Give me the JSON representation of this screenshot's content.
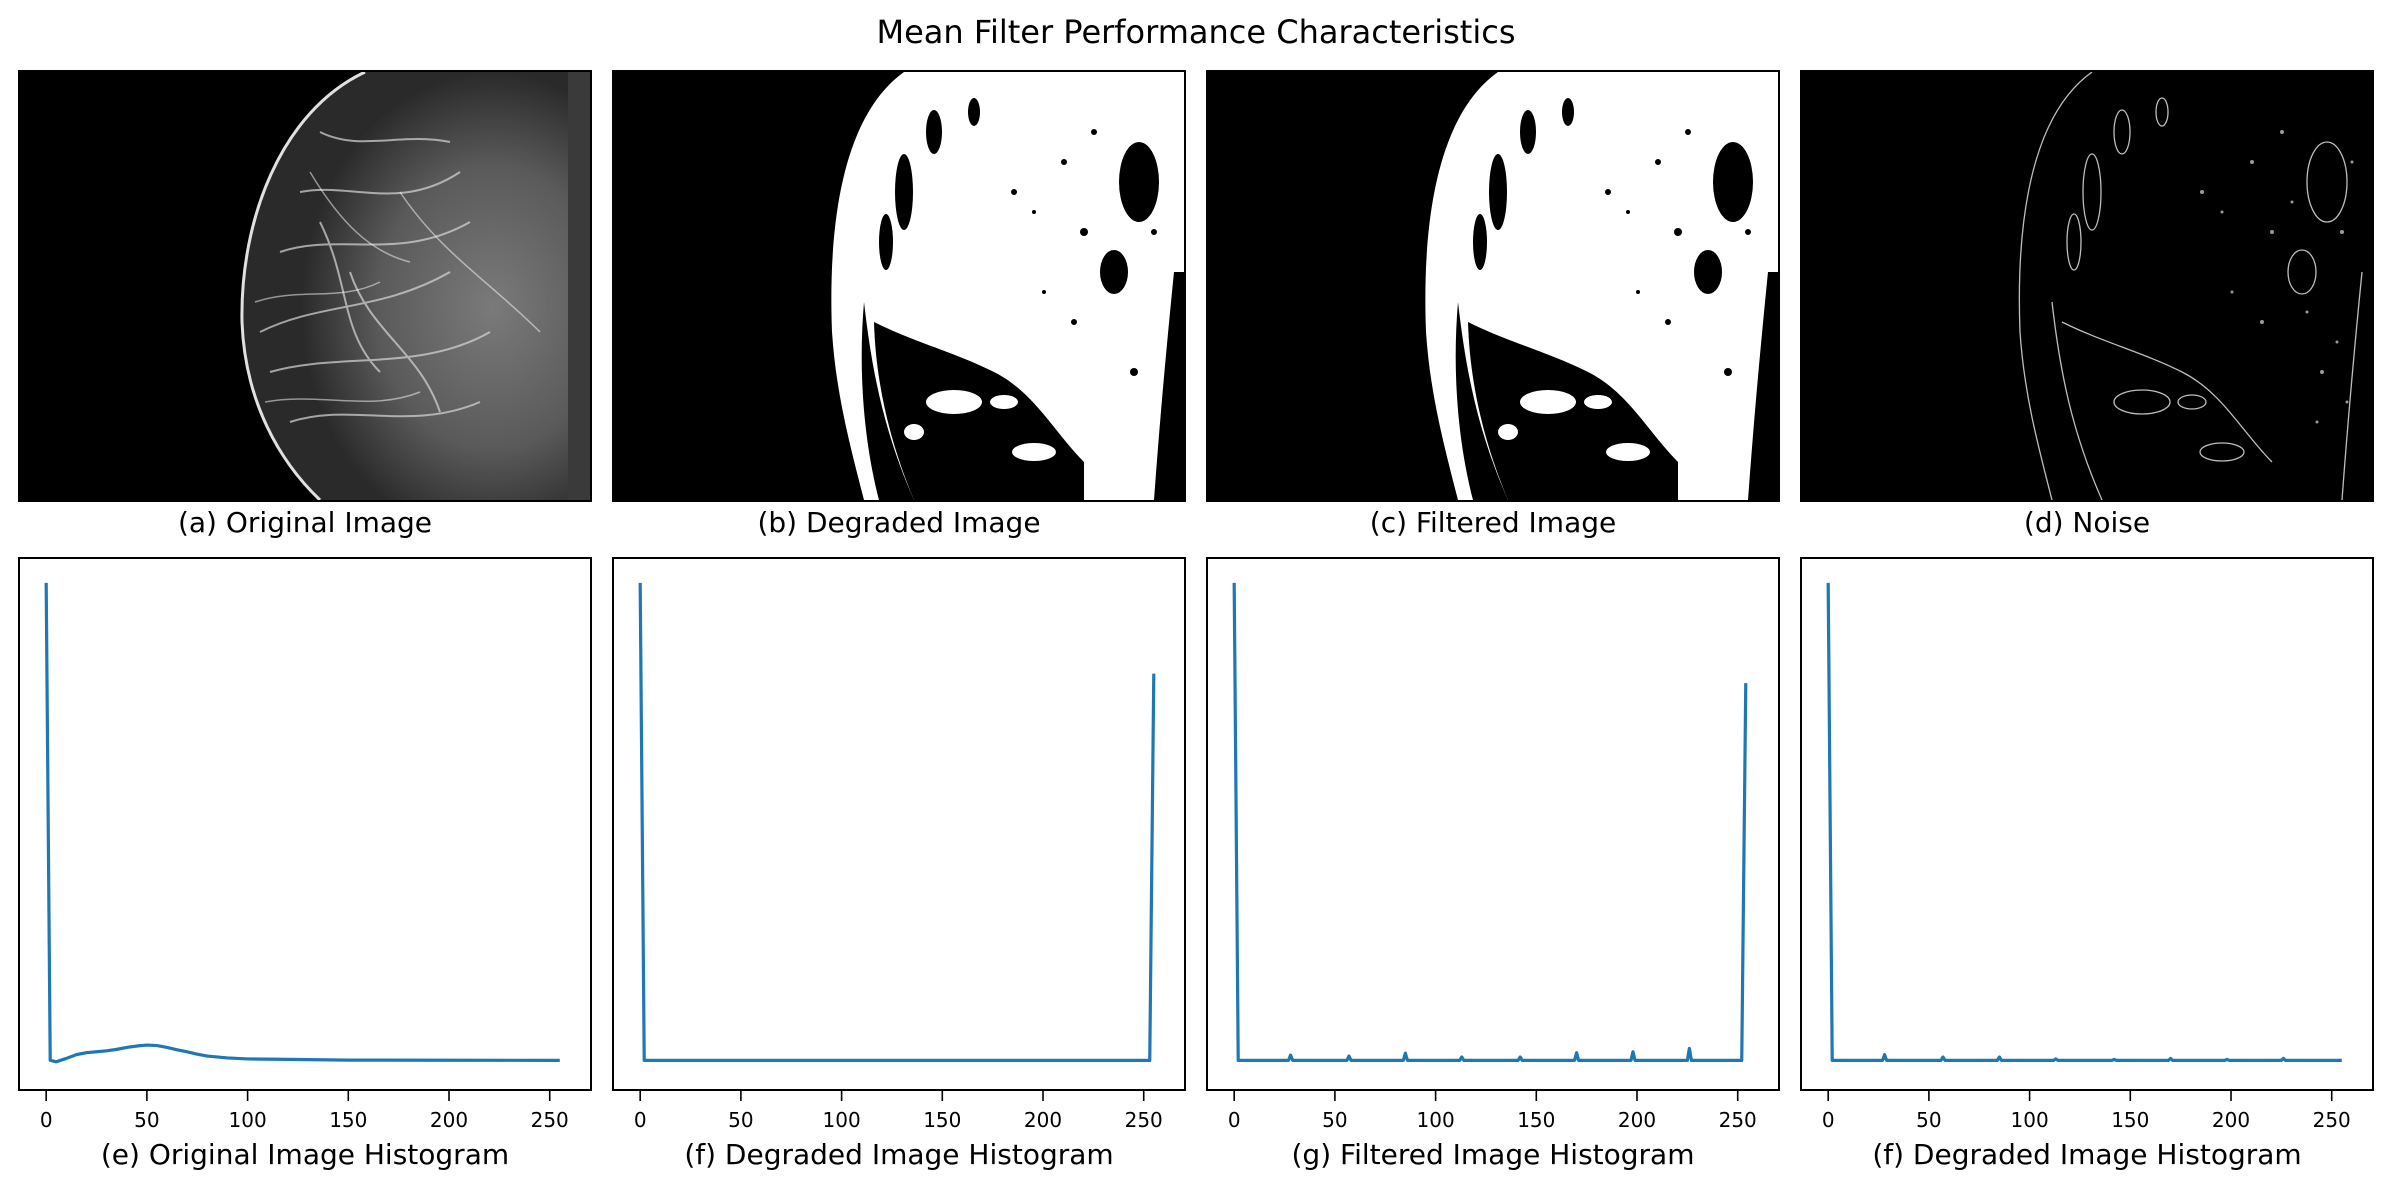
{
  "title": "Mean Filter Performance Characteristics",
  "image_panels": [
    {
      "caption": "(a) Original Image",
      "kind": "original-mammogram"
    },
    {
      "caption": "(b) Degraded Image",
      "kind": "binary-mammogram"
    },
    {
      "caption": "(c) Filtered Image",
      "kind": "binary-mammogram"
    },
    {
      "caption": "(d) Noise",
      "kind": "edge-outline"
    }
  ],
  "colors": {
    "line": "#1f77b4",
    "frame": "#000000",
    "image_bg": "#000000",
    "image_fg": "#ffffff",
    "noise_edges": "#bdbdbd"
  },
  "chart_data": [
    {
      "type": "line",
      "title": "(e) Original Image Histogram",
      "xlim": [
        -13,
        270
      ],
      "ylim": [
        -0.06,
        1.05
      ],
      "x_ticks": [
        0,
        50,
        100,
        150,
        200,
        250
      ],
      "y_ticks": [],
      "grid": false,
      "series": [
        {
          "x": [
            0,
            2,
            5,
            10,
            15,
            20,
            25,
            30,
            35,
            40,
            45,
            50,
            55,
            60,
            65,
            70,
            75,
            80,
            90,
            100,
            120,
            150,
            200,
            255
          ],
          "y": [
            1.0,
            0.0,
            -0.003,
            0.004,
            0.012,
            0.016,
            0.018,
            0.02,
            0.023,
            0.027,
            0.03,
            0.032,
            0.031,
            0.027,
            0.022,
            0.018,
            0.013,
            0.009,
            0.005,
            0.003,
            0.002,
            0.0005,
            0.0002,
            0.0
          ]
        }
      ]
    },
    {
      "type": "line",
      "title": "(f) Degraded Image Histogram",
      "xlim": [
        -13,
        270
      ],
      "ylim": [
        -0.06,
        1.05
      ],
      "x_ticks": [
        0,
        50,
        100,
        150,
        200,
        250
      ],
      "y_ticks": [],
      "grid": false,
      "series": [
        {
          "x": [
            0,
            2,
            253,
            255
          ],
          "y": [
            1.0,
            0.0,
            0.0,
            0.81
          ]
        }
      ]
    },
    {
      "type": "line",
      "title": "(g) Filtered Image Histogram",
      "xlim": [
        -13,
        270
      ],
      "ylim": [
        -0.06,
        1.05
      ],
      "x_ticks": [
        0,
        50,
        100,
        150,
        200,
        250
      ],
      "y_ticks": [],
      "grid": false,
      "series": [
        {
          "x": [
            0,
            2,
            27,
            28,
            29,
            56,
            57,
            58,
            84,
            85,
            86,
            112,
            113,
            114,
            141,
            142,
            143,
            169,
            170,
            171,
            197,
            198,
            199,
            225,
            226,
            227,
            252,
            254
          ],
          "y": [
            1.0,
            0.0,
            0.0,
            0.011,
            0.0,
            0.0,
            0.009,
            0.0,
            0.0,
            0.015,
            0.0,
            0.0,
            0.007,
            0.0,
            0.0,
            0.007,
            0.0,
            0.0,
            0.016,
            0.0,
            0.0,
            0.018,
            0.0,
            0.0,
            0.025,
            0.0,
            0.0,
            0.79
          ]
        }
      ]
    },
    {
      "type": "line",
      "title": "(f) Degraded Image Histogram",
      "xlim": [
        -13,
        270
      ],
      "ylim": [
        -0.06,
        1.05
      ],
      "x_ticks": [
        0,
        50,
        100,
        150,
        200,
        250
      ],
      "y_ticks": [],
      "grid": false,
      "series": [
        {
          "x": [
            0,
            2,
            27,
            28,
            29,
            56,
            57,
            58,
            84,
            85,
            86,
            112,
            113,
            114,
            141,
            142,
            143,
            169,
            170,
            171,
            197,
            198,
            199,
            225,
            226,
            227,
            255
          ],
          "y": [
            1.0,
            0.0,
            0.0,
            0.012,
            0.0,
            0.0,
            0.007,
            0.0,
            0.0,
            0.007,
            0.0,
            0.0,
            0.003,
            0.0,
            0.0,
            0.002,
            0.0,
            0.0,
            0.004,
            0.0,
            0.0,
            0.002,
            0.0,
            0.0,
            0.004,
            0.0,
            0.0
          ]
        }
      ]
    }
  ]
}
